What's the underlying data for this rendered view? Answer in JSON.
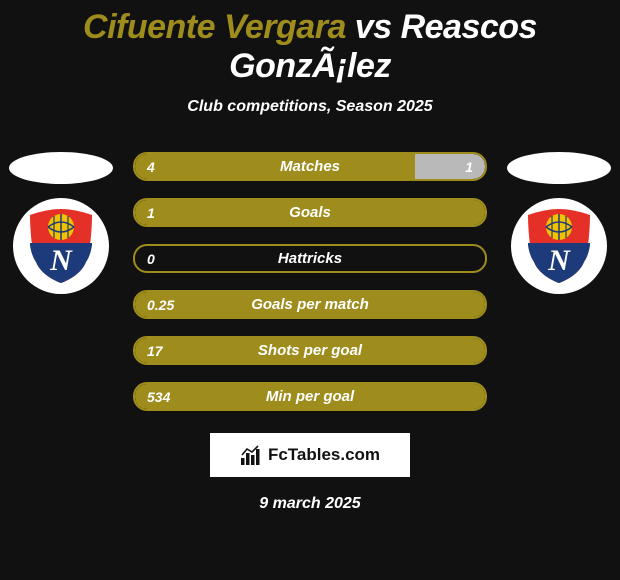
{
  "header": {
    "title_left": "Cifuente Vergara",
    "title_vs": " vs ",
    "title_right": "Reascos GonzÃ¡lez",
    "subtitle": "Club competitions, Season 2025",
    "title_color_left": "#9e8c1c",
    "title_color_right": "#ffffff"
  },
  "colors": {
    "bg": "#111111",
    "bar_border": "#9e8c1c",
    "fill_left": "#9e8c1c",
    "fill_right": "#b9b9b9",
    "text": "#ffffff"
  },
  "team_badge": {
    "shield_top": "#e53027",
    "shield_bottom": "#1d3b7a",
    "ball": "#f2c200",
    "ball_lines": "#1d3b7a",
    "letter": "N",
    "letter_color": "#ffffff"
  },
  "stats": [
    {
      "label": "Matches",
      "left_val": "4",
      "right_val": "1",
      "left_pct": 80,
      "right_pct": 20
    },
    {
      "label": "Goals",
      "left_val": "1",
      "right_val": "",
      "left_pct": 100,
      "right_pct": 0
    },
    {
      "label": "Hattricks",
      "left_val": "0",
      "right_val": "",
      "left_pct": 0,
      "right_pct": 0
    },
    {
      "label": "Goals per match",
      "left_val": "0.25",
      "right_val": "",
      "left_pct": 100,
      "right_pct": 0
    },
    {
      "label": "Shots per goal",
      "left_val": "17",
      "right_val": "",
      "left_pct": 100,
      "right_pct": 0
    },
    {
      "label": "Min per goal",
      "left_val": "534",
      "right_val": "",
      "left_pct": 100,
      "right_pct": 0
    }
  ],
  "brand": {
    "text": "FcTables.com"
  },
  "footer": {
    "date": "9 march 2025"
  }
}
